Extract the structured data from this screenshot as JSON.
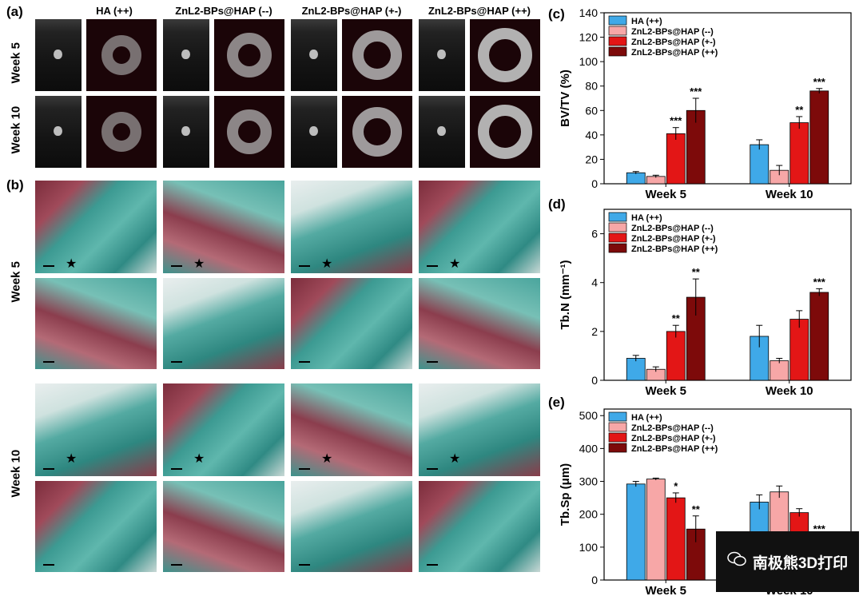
{
  "panel_labels": {
    "a": "(a)",
    "b": "(b)",
    "c": "(c)",
    "d": "(d)",
    "e": "(e)"
  },
  "columns": [
    "HA (++)",
    "ZnL2-BPs@HAP (--)",
    "ZnL2-BPs@HAP (+-)",
    "ZnL2-BPs@HAP (++)"
  ],
  "rows": {
    "week5": "Week 5",
    "week10": "Week 10"
  },
  "watermark": {
    "text": "南极熊3D打印",
    "icon": "wechat-icon"
  },
  "colors": {
    "ha": "#3fa9e8",
    "neg": "#f7a7a7",
    "pm": "#e31616",
    "pp": "#7d0a0a"
  },
  "chart_data": [
    {
      "type": "bar",
      "panel": "(c)",
      "ylabel": "BV/TV (%)",
      "ylim": [
        0,
        140
      ],
      "yticks": [
        0,
        20,
        40,
        60,
        80,
        100,
        120,
        140
      ],
      "categories": [
        "Week 5",
        "Week 10"
      ],
      "series": [
        {
          "name": "HA (++)",
          "values": [
            9,
            32
          ],
          "errors": [
            1,
            4
          ],
          "sig": [
            "",
            ""
          ]
        },
        {
          "name": "ZnL2-BPs@HAP (--)",
          "values": [
            6,
            11
          ],
          "errors": [
            1,
            4
          ],
          "sig": [
            "",
            ""
          ]
        },
        {
          "name": "ZnL2-BPs@HAP (+-)",
          "values": [
            41,
            50
          ],
          "errors": [
            5,
            5
          ],
          "sig": [
            "***",
            "**"
          ]
        },
        {
          "name": "ZnL2-BPs@HAP (++)",
          "values": [
            60,
            76
          ],
          "errors": [
            10,
            2
          ],
          "sig": [
            "***",
            "***"
          ]
        }
      ],
      "legend": "top-left",
      "grid": false
    },
    {
      "type": "bar",
      "panel": "(d)",
      "ylabel": "Tb.N (mm⁻¹)",
      "ylim": [
        0,
        7
      ],
      "yticks": [
        0,
        2,
        4,
        6
      ],
      "categories": [
        "Week 5",
        "Week 10"
      ],
      "series": [
        {
          "name": "HA (++)",
          "values": [
            0.9,
            1.8
          ],
          "errors": [
            0.12,
            0.45
          ],
          "sig": [
            "",
            ""
          ]
        },
        {
          "name": "ZnL2-BPs@HAP (--)",
          "values": [
            0.45,
            0.8
          ],
          "errors": [
            0.1,
            0.1
          ],
          "sig": [
            "",
            ""
          ]
        },
        {
          "name": "ZnL2-BPs@HAP (+-)",
          "values": [
            2.0,
            2.5
          ],
          "errors": [
            0.25,
            0.35
          ],
          "sig": [
            "**",
            ""
          ]
        },
        {
          "name": "ZnL2-BPs@HAP (++)",
          "values": [
            3.4,
            3.6
          ],
          "errors": [
            0.75,
            0.15
          ],
          "sig": [
            "**",
            "***"
          ]
        }
      ],
      "legend": "top-left",
      "grid": false
    },
    {
      "type": "bar",
      "panel": "(e)",
      "ylabel": "Tb.Sp (μm)",
      "ylim": [
        0,
        520
      ],
      "yticks": [
        0,
        100,
        200,
        300,
        400,
        500
      ],
      "categories": [
        "Week 5",
        "Week 10"
      ],
      "series": [
        {
          "name": "HA (++)",
          "values": [
            292,
            237
          ],
          "errors": [
            8,
            22
          ],
          "sig": [
            "",
            ""
          ]
        },
        {
          "name": "ZnL2-BPs@HAP (--)",
          "values": [
            307,
            268
          ],
          "errors": [
            3,
            18
          ],
          "sig": [
            "",
            ""
          ]
        },
        {
          "name": "ZnL2-BPs@HAP (+-)",
          "values": [
            250,
            205
          ],
          "errors": [
            15,
            12
          ],
          "sig": [
            "*",
            ""
          ]
        },
        {
          "name": "ZnL2-BPs@HAP (++)",
          "values": [
            155,
            125
          ],
          "errors": [
            40,
            10
          ],
          "sig": [
            "**",
            "***"
          ]
        }
      ],
      "legend": "top-left",
      "grid": false
    }
  ]
}
